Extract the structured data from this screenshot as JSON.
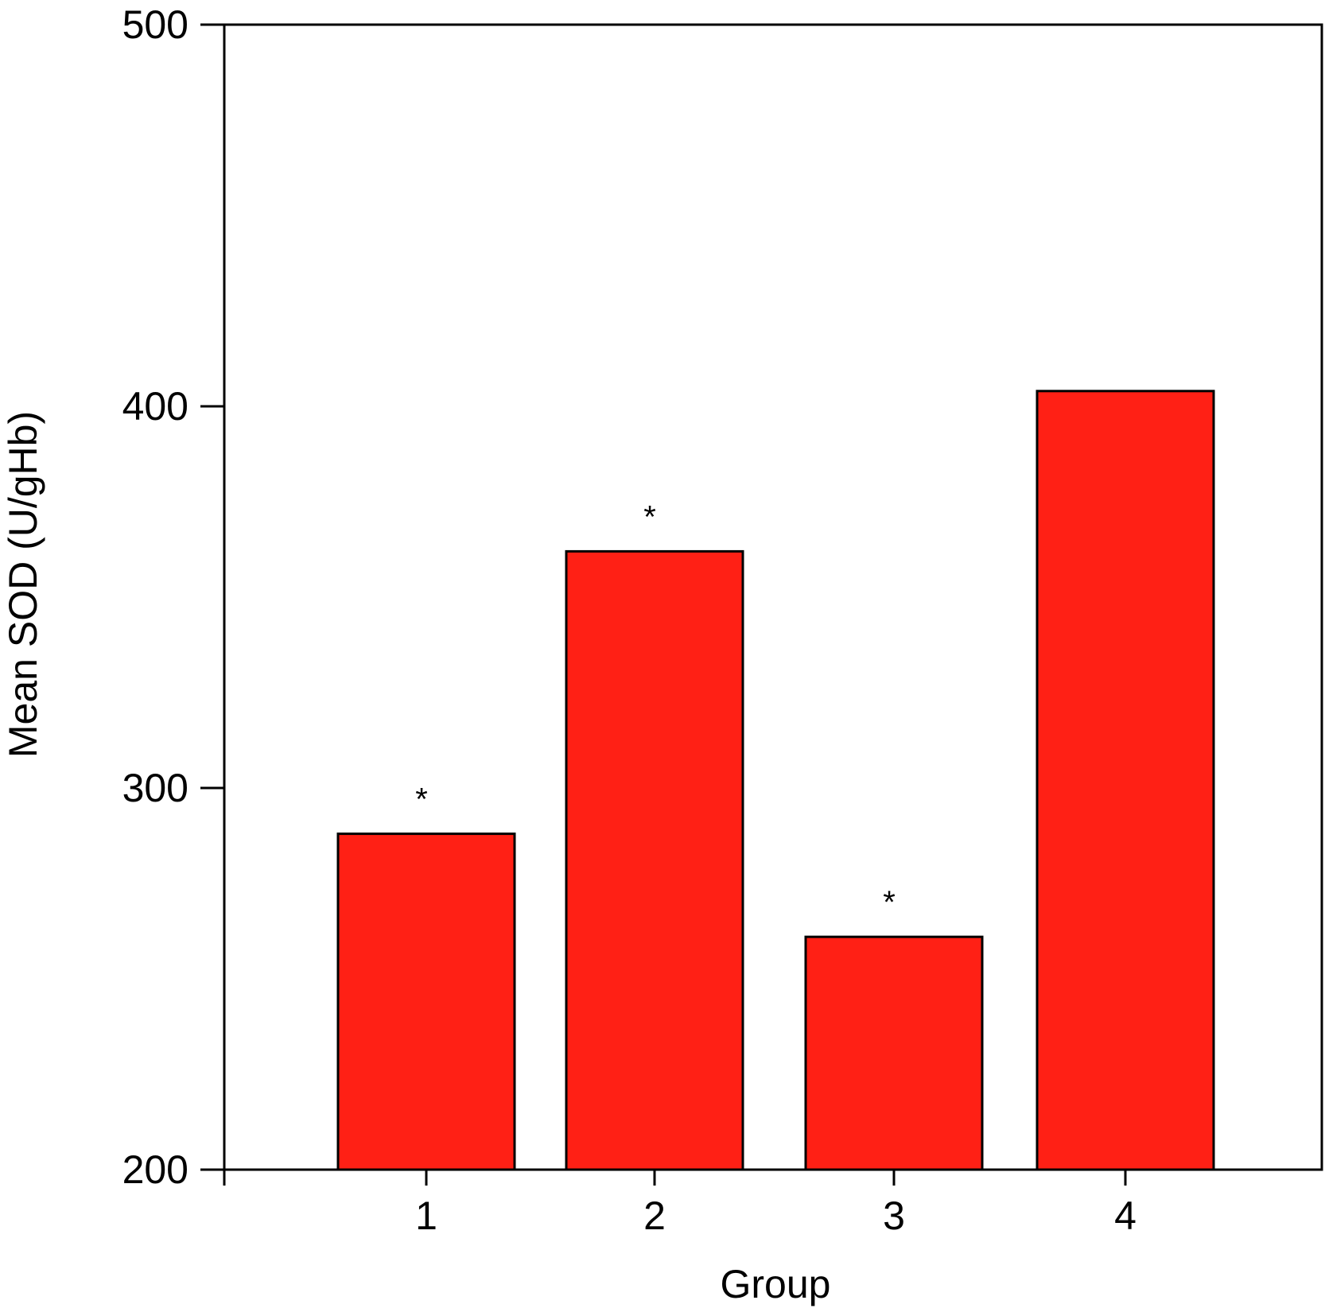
{
  "chart_data": {
    "type": "bar",
    "categories": [
      "1",
      "2",
      "3",
      "4"
    ],
    "values": [
      288,
      362,
      261,
      404
    ],
    "significance": [
      "*",
      "*",
      "*",
      ""
    ],
    "xlabel": "Group",
    "ylabel": "Mean SOD (U/gHb)",
    "ylim": [
      200,
      500
    ],
    "yticks": [
      "200",
      "300",
      "400",
      "500"
    ],
    "grid": false,
    "bar_color": "#ff2015",
    "edge_color": "#000000"
  }
}
